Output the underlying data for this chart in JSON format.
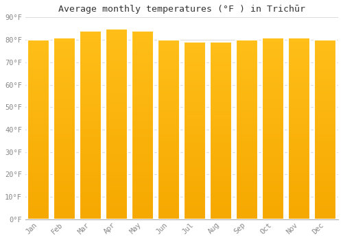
{
  "title": "Average monthly temperatures (°F ) in Trichūr",
  "categories": [
    "Jan",
    "Feb",
    "Mar",
    "Apr",
    "May",
    "Jun",
    "Jul",
    "Aug",
    "Sep",
    "Oct",
    "Nov",
    "Dec"
  ],
  "values": [
    80,
    81,
    84,
    85,
    84,
    80,
    79,
    79,
    80,
    81,
    81,
    80
  ],
  "bar_color_top": "#FFBE18",
  "bar_color_bottom": "#F5A800",
  "bar_edge_color": "#FFFFFF",
  "background_color": "#FFFFFF",
  "grid_color": "#DDDDDD",
  "ylim": [
    0,
    90
  ],
  "yticks": [
    0,
    10,
    20,
    30,
    40,
    50,
    60,
    70,
    80,
    90
  ],
  "ytick_labels": [
    "0°F",
    "10°F",
    "20°F",
    "30°F",
    "40°F",
    "50°F",
    "60°F",
    "70°F",
    "80°F",
    "90°F"
  ],
  "title_fontsize": 9.5,
  "tick_fontsize": 7.5,
  "bar_width": 0.85,
  "font_family": "monospace",
  "figwidth": 5.0,
  "figheight": 3.5,
  "dpi": 100
}
